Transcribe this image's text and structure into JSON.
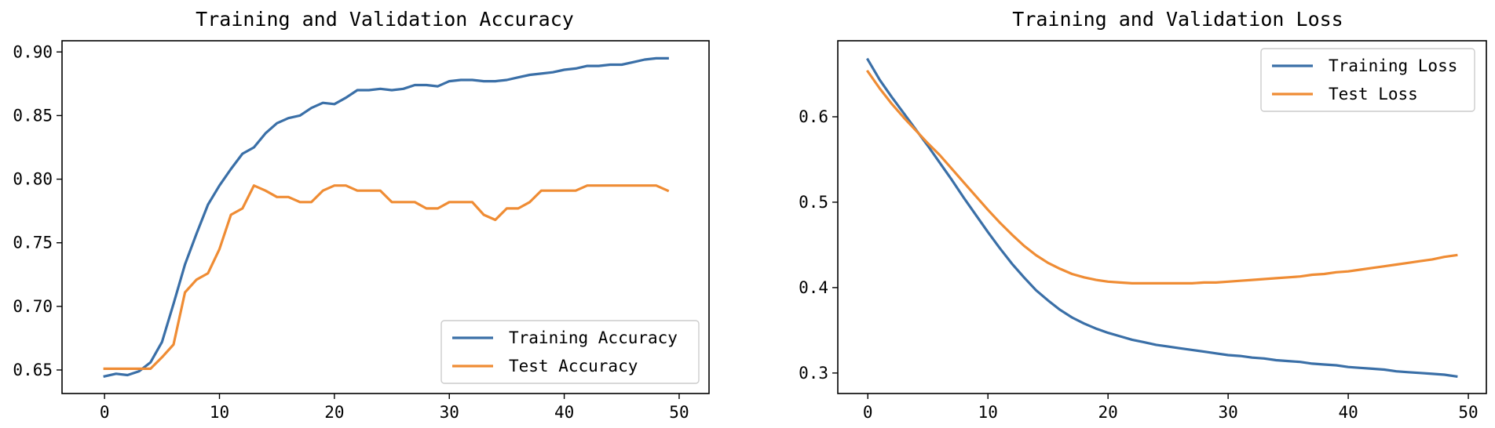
{
  "chart_data": [
    {
      "type": "line",
      "title": "Training and Validation Accuracy",
      "xlabel": "",
      "ylabel": "",
      "xlim": [
        -3.7,
        52.6
      ],
      "ylim": [
        0.6315,
        0.9088
      ],
      "xticks": [
        0,
        10,
        20,
        30,
        40,
        50
      ],
      "yticks": [
        0.65,
        0.7,
        0.75,
        0.8,
        0.85,
        0.9
      ],
      "ytick_labels": [
        "0.65",
        "0.70",
        "0.75",
        "0.80",
        "0.85",
        "0.90"
      ],
      "grid": false,
      "legend_position": "lower-right",
      "series": [
        {
          "name": "Training Accuracy",
          "color": "#3a6fa7",
          "x": [
            0,
            1,
            2,
            3,
            4,
            5,
            6,
            7,
            8,
            9,
            10,
            11,
            12,
            13,
            14,
            15,
            16,
            17,
            18,
            19,
            20,
            21,
            22,
            23,
            24,
            25,
            26,
            27,
            28,
            29,
            30,
            31,
            32,
            33,
            34,
            35,
            36,
            37,
            38,
            39,
            40,
            41,
            42,
            43,
            44,
            45,
            46,
            47,
            48,
            49
          ],
          "values": [
            0.645,
            0.647,
            0.646,
            0.649,
            0.656,
            0.672,
            0.702,
            0.733,
            0.757,
            0.78,
            0.795,
            0.808,
            0.82,
            0.825,
            0.836,
            0.844,
            0.848,
            0.85,
            0.856,
            0.86,
            0.859,
            0.864,
            0.87,
            0.87,
            0.871,
            0.87,
            0.871,
            0.874,
            0.874,
            0.873,
            0.877,
            0.878,
            0.878,
            0.877,
            0.877,
            0.878,
            0.88,
            0.882,
            0.883,
            0.884,
            0.886,
            0.887,
            0.889,
            0.889,
            0.89,
            0.89,
            0.892,
            0.894,
            0.895,
            0.895
          ]
        },
        {
          "name": "Test Accuracy",
          "color": "#ef8c34",
          "x": [
            0,
            1,
            2,
            3,
            4,
            5,
            6,
            7,
            8,
            9,
            10,
            11,
            12,
            13,
            14,
            15,
            16,
            17,
            18,
            19,
            20,
            21,
            22,
            23,
            24,
            25,
            26,
            27,
            28,
            29,
            30,
            31,
            32,
            33,
            34,
            35,
            36,
            37,
            38,
            39,
            40,
            41,
            42,
            43,
            44,
            45,
            46,
            47,
            48,
            49
          ],
          "values": [
            0.651,
            0.651,
            0.651,
            0.651,
            0.651,
            0.66,
            0.67,
            0.711,
            0.721,
            0.726,
            0.745,
            0.772,
            0.777,
            0.795,
            0.791,
            0.786,
            0.786,
            0.782,
            0.782,
            0.791,
            0.795,
            0.795,
            0.791,
            0.791,
            0.791,
            0.782,
            0.782,
            0.782,
            0.777,
            0.777,
            0.782,
            0.782,
            0.782,
            0.772,
            0.768,
            0.777,
            0.777,
            0.782,
            0.791,
            0.791,
            0.791,
            0.791,
            0.795,
            0.795,
            0.795,
            0.795,
            0.795,
            0.795,
            0.795,
            0.791
          ]
        }
      ]
    },
    {
      "type": "line",
      "title": "Training and Validation Loss",
      "xlabel": "",
      "ylabel": "",
      "xlim": [
        -2.5,
        51.5
      ],
      "ylim": [
        0.276,
        0.689
      ],
      "xticks": [
        0,
        10,
        20,
        30,
        40,
        50
      ],
      "yticks": [
        0.3,
        0.4,
        0.5,
        0.6
      ],
      "ytick_labels": [
        "0.3",
        "0.4",
        "0.5",
        "0.6"
      ],
      "grid": false,
      "legend_position": "upper-right",
      "series": [
        {
          "name": "Training Loss",
          "color": "#3a6fa7",
          "x": [
            0,
            1,
            2,
            3,
            4,
            5,
            6,
            7,
            8,
            9,
            10,
            11,
            12,
            13,
            14,
            15,
            16,
            17,
            18,
            19,
            20,
            21,
            22,
            23,
            24,
            25,
            26,
            27,
            28,
            29,
            30,
            31,
            32,
            33,
            34,
            35,
            36,
            37,
            38,
            39,
            40,
            41,
            42,
            43,
            44,
            45,
            46,
            47,
            48,
            49
          ],
          "values": [
            0.667,
            0.643,
            0.623,
            0.604,
            0.585,
            0.566,
            0.546,
            0.526,
            0.505,
            0.485,
            0.465,
            0.446,
            0.428,
            0.412,
            0.397,
            0.385,
            0.374,
            0.365,
            0.358,
            0.352,
            0.347,
            0.343,
            0.339,
            0.336,
            0.333,
            0.331,
            0.329,
            0.327,
            0.325,
            0.323,
            0.321,
            0.32,
            0.318,
            0.317,
            0.315,
            0.314,
            0.313,
            0.311,
            0.31,
            0.309,
            0.307,
            0.306,
            0.305,
            0.304,
            0.302,
            0.301,
            0.3,
            0.299,
            0.298,
            0.296
          ]
        },
        {
          "name": "Test Loss",
          "color": "#ef8c34",
          "x": [
            0,
            1,
            2,
            3,
            4,
            5,
            6,
            7,
            8,
            9,
            10,
            11,
            12,
            13,
            14,
            15,
            16,
            17,
            18,
            19,
            20,
            21,
            22,
            23,
            24,
            25,
            26,
            27,
            28,
            29,
            30,
            31,
            32,
            33,
            34,
            35,
            36,
            37,
            38,
            39,
            40,
            41,
            42,
            43,
            44,
            45,
            46,
            47,
            48,
            49
          ],
          "values": [
            0.653,
            0.633,
            0.615,
            0.599,
            0.584,
            0.569,
            0.555,
            0.539,
            0.523,
            0.507,
            0.491,
            0.476,
            0.462,
            0.449,
            0.438,
            0.429,
            0.422,
            0.416,
            0.412,
            0.409,
            0.407,
            0.406,
            0.405,
            0.405,
            0.405,
            0.405,
            0.405,
            0.405,
            0.406,
            0.406,
            0.407,
            0.408,
            0.409,
            0.41,
            0.411,
            0.412,
            0.413,
            0.415,
            0.416,
            0.418,
            0.419,
            0.421,
            0.423,
            0.425,
            0.427,
            0.429,
            0.431,
            0.433,
            0.436,
            0.438
          ]
        }
      ]
    }
  ]
}
